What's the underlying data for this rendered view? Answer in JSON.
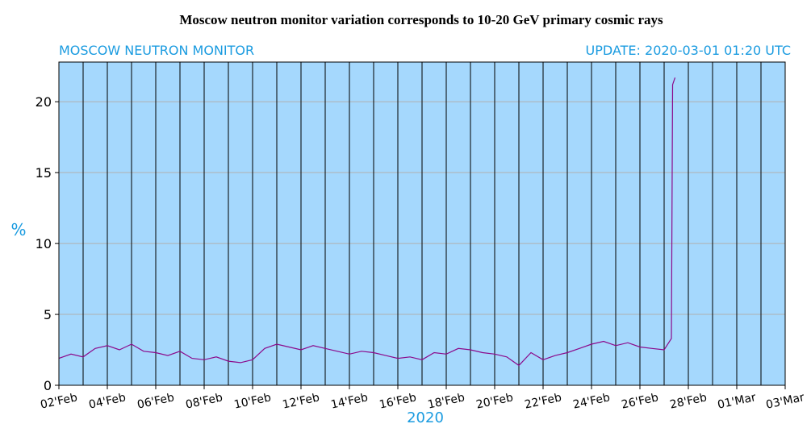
{
  "chart_data": {
    "type": "line",
    "title": "Moscow neutron monitor variation corresponds to 10-20 GeV primary cosmic rays",
    "subtitle_left": "MOSCOW NEUTRON MONITOR",
    "subtitle_right": "UPDATE: 2020-03-01 01:20 UTC",
    "ylabel": "%",
    "xlabel": "2020",
    "x": [
      2,
      2.5,
      3,
      3.5,
      4,
      4.5,
      5,
      5.5,
      6,
      6.5,
      7,
      7.5,
      8,
      8.5,
      9,
      9.5,
      10,
      10.5,
      11,
      11.5,
      12,
      12.5,
      13,
      13.5,
      14,
      14.5,
      15,
      15.5,
      16,
      16.5,
      17,
      17.5,
      18,
      18.5,
      19,
      19.5,
      20,
      20.5,
      21,
      21.5,
      22,
      22.5,
      23,
      23.5,
      24,
      24.5,
      25,
      25.5,
      26,
      26.5,
      27,
      27.3,
      27.35,
      27.45
    ],
    "values": [
      1.9,
      2.2,
      2.0,
      2.6,
      2.8,
      2.5,
      2.9,
      2.4,
      2.3,
      2.1,
      2.4,
      1.9,
      1.8,
      2.0,
      1.7,
      1.6,
      1.8,
      2.6,
      2.9,
      2.7,
      2.5,
      2.8,
      2.6,
      2.4,
      2.2,
      2.4,
      2.3,
      2.1,
      1.9,
      2.0,
      1.8,
      2.3,
      2.2,
      2.6,
      2.5,
      2.3,
      2.2,
      2.0,
      1.4,
      2.3,
      1.8,
      2.1,
      2.3,
      2.6,
      2.9,
      3.1,
      2.8,
      3.0,
      2.7,
      2.6,
      2.5,
      3.3,
      21.2,
      21.7
    ],
    "color": "#8b0a8b",
    "background": "#a5d8fd",
    "xlim": [
      2,
      32
    ],
    "xticks": [
      {
        "value": 2,
        "label": "02'Feb"
      },
      {
        "value": 4,
        "label": "04'Feb"
      },
      {
        "value": 6,
        "label": "06'Feb"
      },
      {
        "value": 8,
        "label": "08'Feb"
      },
      {
        "value": 10,
        "label": "10'Feb"
      },
      {
        "value": 12,
        "label": "12'Feb"
      },
      {
        "value": 14,
        "label": "14'Feb"
      },
      {
        "value": 16,
        "label": "16'Feb"
      },
      {
        "value": 18,
        "label": "18'Feb"
      },
      {
        "value": 20,
        "label": "20'Feb"
      },
      {
        "value": 22,
        "label": "22'Feb"
      },
      {
        "value": 24,
        "label": "24'Feb"
      },
      {
        "value": 26,
        "label": "26'Feb"
      },
      {
        "value": 28,
        "label": "28'Feb"
      },
      {
        "value": 30,
        "label": "01'Mar"
      },
      {
        "value": 32,
        "label": "03'Mar"
      }
    ],
    "xminor": [
      3,
      5,
      7,
      9,
      11,
      13,
      15,
      17,
      19,
      21,
      23,
      25,
      27,
      29,
      31
    ],
    "ylim": [
      0,
      22.8
    ],
    "yticks": [
      0,
      5,
      10,
      15,
      20
    ],
    "grid": true
  }
}
